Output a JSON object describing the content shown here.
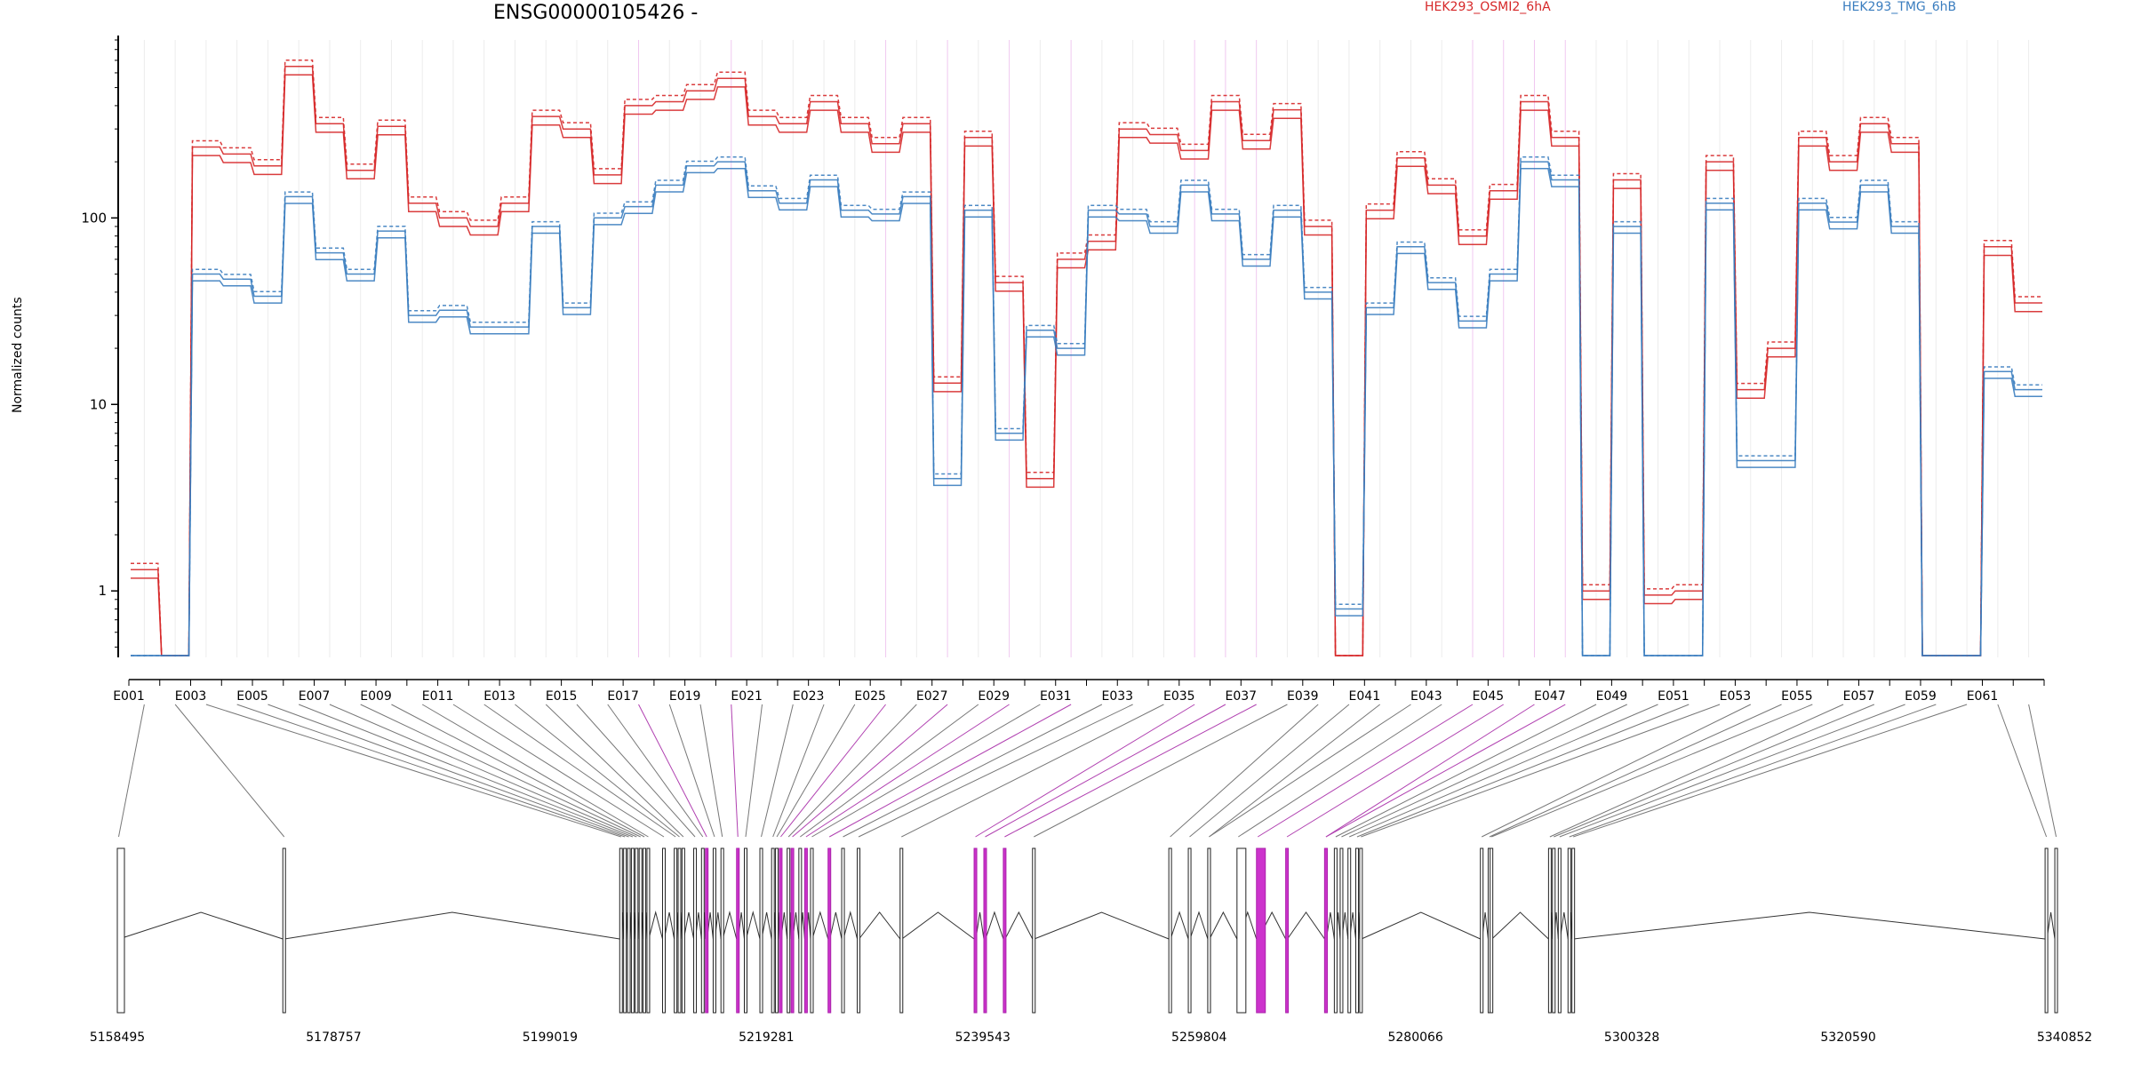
{
  "chart_data": {
    "type": "line",
    "title": "ENSG00000105426 -",
    "ylabel": "Normalized counts",
    "yscale": "log",
    "ylim": [
      0.45,
      900
    ],
    "yticks": [
      1,
      10,
      100
    ],
    "ytick_labels": [
      "1",
      "10",
      "100"
    ],
    "exon_labels": [
      "E001",
      "E003",
      "E005",
      "E007",
      "E009",
      "E011",
      "E013",
      "E015",
      "E017",
      "E019",
      "E021",
      "E023",
      "E025",
      "E027",
      "E029",
      "E031",
      "E033",
      "E035",
      "E037",
      "E039",
      "E041",
      "E043",
      "E045",
      "E047",
      "E049",
      "E051",
      "E053",
      "E055",
      "E057",
      "E059",
      "E061"
    ],
    "exons_total": 62,
    "highlighted_exons": [
      17,
      20,
      25,
      27,
      29,
      31,
      35,
      36,
      37,
      44,
      45,
      46,
      47
    ],
    "genomic_ticks": [
      "5158495",
      "5178757",
      "5199019",
      "5219281",
      "5239543",
      "5259804",
      "5280066",
      "5300328",
      "5320590",
      "5340852"
    ],
    "legend_placement": "top",
    "series": [
      {
        "name": "HEK293_OSMI2_6hA",
        "color": "#d62728",
        "replicates": 3,
        "values": [
          1.3,
          0.45,
          240,
          220,
          190,
          650,
          320,
          180,
          310,
          120,
          100,
          90,
          120,
          350,
          300,
          170,
          400,
          420,
          480,
          560,
          350,
          320,
          420,
          320,
          250,
          320,
          13,
          270,
          45,
          4,
          60,
          75,
          300,
          280,
          230,
          420,
          260,
          380,
          90,
          0.45,
          110,
          210,
          150,
          80,
          140,
          420,
          270,
          1.0,
          160,
          0.95,
          1.0,
          200,
          12,
          20,
          270,
          200,
          320,
          250,
          0.45,
          0.45,
          70,
          35
        ]
      },
      {
        "name": "HEK293_TMG_6hB",
        "color": "#3a7dbf",
        "replicates": 3,
        "values": [
          0.45,
          0.45,
          50,
          47,
          38,
          130,
          65,
          50,
          85,
          30,
          32,
          26,
          26,
          90,
          33,
          100,
          115,
          150,
          190,
          200,
          140,
          120,
          160,
          110,
          105,
          130,
          4,
          110,
          7,
          25,
          20,
          110,
          105,
          90,
          150,
          105,
          60,
          110,
          40,
          0.8,
          33,
          70,
          45,
          28,
          50,
          200,
          160,
          0.45,
          90,
          0.45,
          0.45,
          120,
          5,
          5,
          120,
          95,
          150,
          90,
          0.45,
          0.45,
          15,
          12
        ]
      }
    ]
  }
}
